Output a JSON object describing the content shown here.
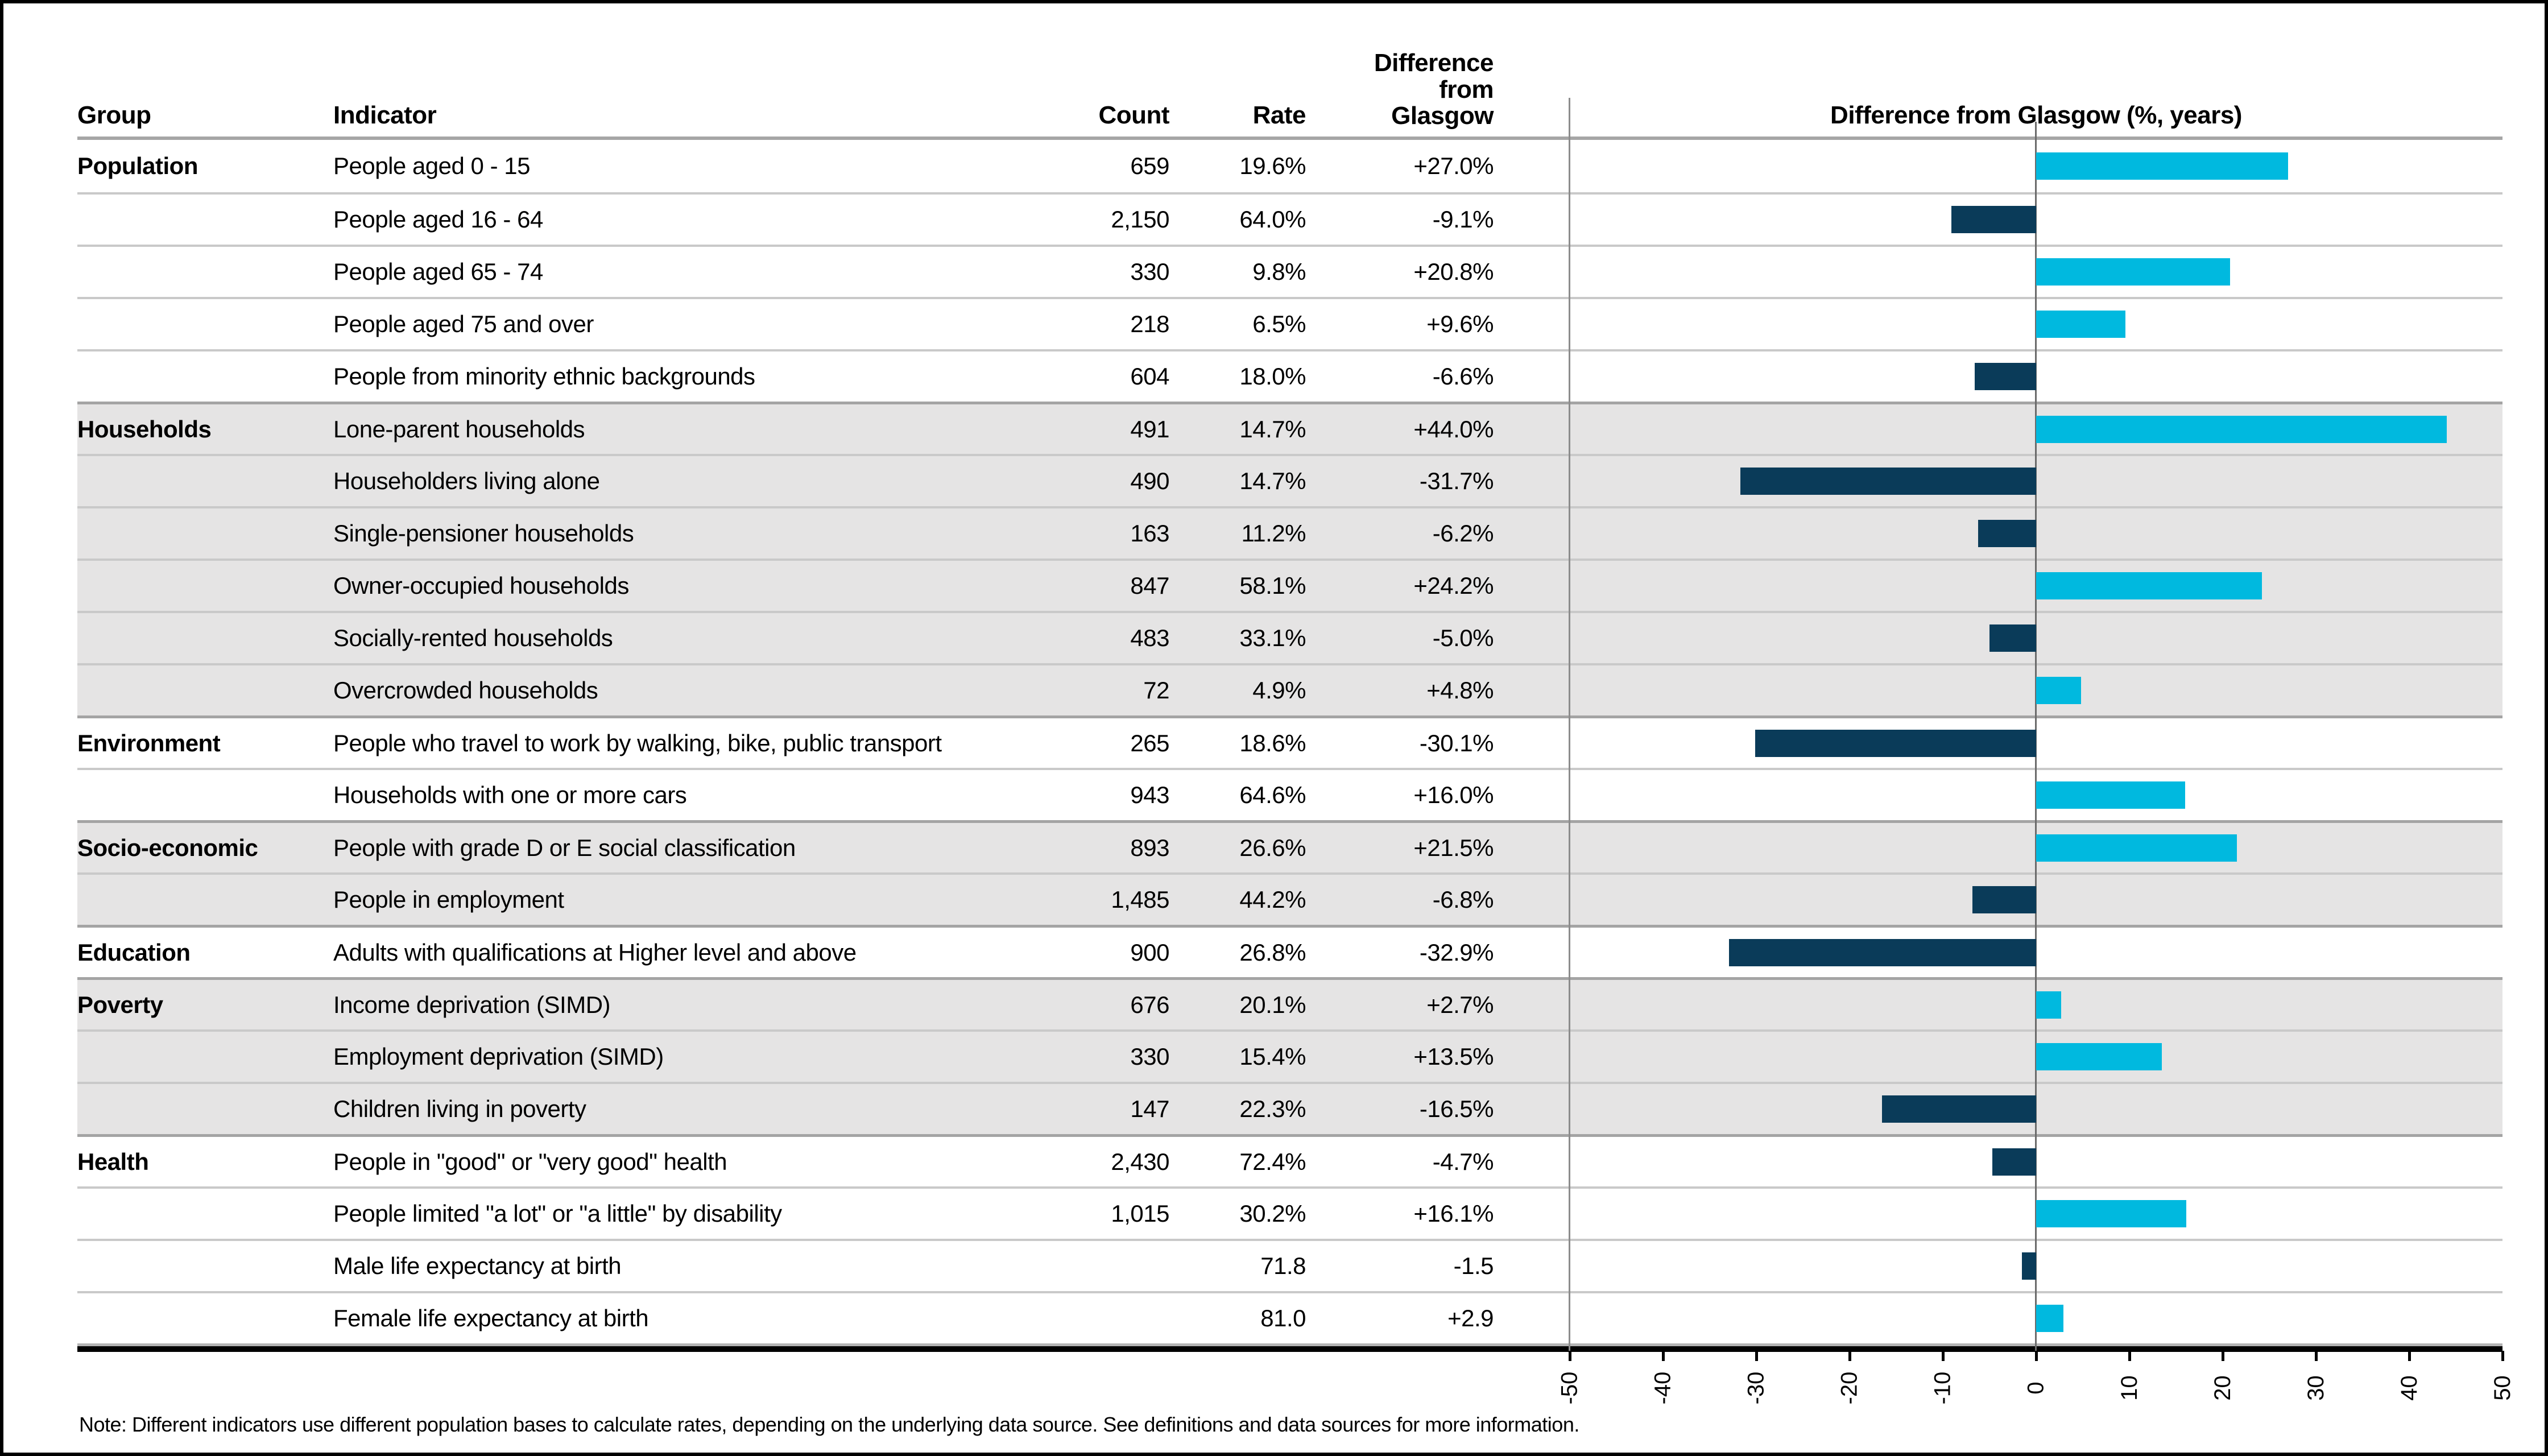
{
  "header": {
    "group": "Group",
    "indicator": "Indicator",
    "count": "Count",
    "rate": "Rate",
    "difference": "Difference\nfrom\nGlasgow"
  },
  "chart": {
    "title": "Difference from Glasgow (%, years)",
    "ticks": [
      -50,
      -40,
      -30,
      -20,
      -10,
      0,
      10,
      20,
      30,
      40,
      50
    ],
    "xlim": [
      -50,
      50
    ],
    "positive_color": "#00b9df",
    "negative_color": "#0a3b59"
  },
  "table": {
    "rows": [
      {
        "group": "Population",
        "indicator": "People aged 0 - 15",
        "count": "659",
        "rate": "19.6%",
        "difference": "+27.0%",
        "value": 27.0,
        "shaded": false,
        "section_start": true
      },
      {
        "group": "",
        "indicator": "People aged 16 - 64",
        "count": "2,150",
        "rate": "64.0%",
        "difference": "-9.1%",
        "value": -9.1,
        "shaded": false,
        "section_start": false
      },
      {
        "group": "",
        "indicator": "People aged 65 - 74",
        "count": "330",
        "rate": "9.8%",
        "difference": "+20.8%",
        "value": 20.8,
        "shaded": false,
        "section_start": false
      },
      {
        "group": "",
        "indicator": "People aged 75 and over",
        "count": "218",
        "rate": "6.5%",
        "difference": "+9.6%",
        "value": 9.6,
        "shaded": false,
        "section_start": false
      },
      {
        "group": "",
        "indicator": "People from minority ethnic backgrounds",
        "count": "604",
        "rate": "18.0%",
        "difference": "-6.6%",
        "value": -6.6,
        "shaded": false,
        "section_start": false
      },
      {
        "group": "Households",
        "indicator": "Lone-parent households",
        "count": "491",
        "rate": "14.7%",
        "difference": "+44.0%",
        "value": 44.0,
        "shaded": true,
        "section_start": true
      },
      {
        "group": "",
        "indicator": "Householders living alone",
        "count": "490",
        "rate": "14.7%",
        "difference": "-31.7%",
        "value": -31.7,
        "shaded": true,
        "section_start": false
      },
      {
        "group": "",
        "indicator": "Single-pensioner households",
        "count": "163",
        "rate": "11.2%",
        "difference": "-6.2%",
        "value": -6.2,
        "shaded": true,
        "section_start": false
      },
      {
        "group": "",
        "indicator": "Owner-occupied households",
        "count": "847",
        "rate": "58.1%",
        "difference": "+24.2%",
        "value": 24.2,
        "shaded": true,
        "section_start": false
      },
      {
        "group": "",
        "indicator": "Socially-rented households",
        "count": "483",
        "rate": "33.1%",
        "difference": "-5.0%",
        "value": -5.0,
        "shaded": true,
        "section_start": false
      },
      {
        "group": "",
        "indicator": "Overcrowded households",
        "count": "72",
        "rate": "4.9%",
        "difference": "+4.8%",
        "value": 4.8,
        "shaded": true,
        "section_start": false
      },
      {
        "group": "Environment",
        "indicator": "People who travel to work by walking, bike, public transport",
        "count": "265",
        "rate": "18.6%",
        "difference": "-30.1%",
        "value": -30.1,
        "shaded": false,
        "section_start": true
      },
      {
        "group": "",
        "indicator": "Households with one or more cars",
        "count": "943",
        "rate": "64.6%",
        "difference": "+16.0%",
        "value": 16.0,
        "shaded": false,
        "section_start": false
      },
      {
        "group": "Socio-economic",
        "indicator": "People with grade D or E social classification",
        "count": "893",
        "rate": "26.6%",
        "difference": "+21.5%",
        "value": 21.5,
        "shaded": true,
        "section_start": true
      },
      {
        "group": "",
        "indicator": "People in employment",
        "count": "1,485",
        "rate": "44.2%",
        "difference": "-6.8%",
        "value": -6.8,
        "shaded": true,
        "section_start": false
      },
      {
        "group": "Education",
        "indicator": "Adults with qualifications at Higher level and above",
        "count": "900",
        "rate": "26.8%",
        "difference": "-32.9%",
        "value": -32.9,
        "shaded": false,
        "section_start": true
      },
      {
        "group": "Poverty",
        "indicator": "Income deprivation (SIMD)",
        "count": "676",
        "rate": "20.1%",
        "difference": "+2.7%",
        "value": 2.7,
        "shaded": true,
        "section_start": true
      },
      {
        "group": "",
        "indicator": "Employment deprivation (SIMD)",
        "count": "330",
        "rate": "15.4%",
        "difference": "+13.5%",
        "value": 13.5,
        "shaded": true,
        "section_start": false
      },
      {
        "group": "",
        "indicator": "Children living in poverty",
        "count": "147",
        "rate": "22.3%",
        "difference": "-16.5%",
        "value": -16.5,
        "shaded": true,
        "section_start": false
      },
      {
        "group": "Health",
        "indicator": "People in \"good\" or \"very good\" health",
        "count": "2,430",
        "rate": "72.4%",
        "difference": "-4.7%",
        "value": -4.7,
        "shaded": false,
        "section_start": true
      },
      {
        "group": "",
        "indicator": "People limited \"a lot\" or \"a little\" by disability",
        "count": "1,015",
        "rate": "30.2%",
        "difference": "+16.1%",
        "value": 16.1,
        "shaded": false,
        "section_start": false
      },
      {
        "group": "",
        "indicator": "Male life expectancy at birth",
        "count": "",
        "rate": "71.8",
        "difference": "-1.5",
        "value": -1.5,
        "shaded": false,
        "section_start": false
      },
      {
        "group": "",
        "indicator": "Female life expectancy at birth",
        "count": "",
        "rate": "81.0",
        "difference": "+2.9",
        "value": 2.9,
        "shaded": false,
        "section_start": false
      }
    ]
  },
  "note": "Note: Different indicators use different population bases to calculate rates, depending on the underlying data source. See definitions and data sources for more information.",
  "chart_data": {
    "type": "bar",
    "orientation": "horizontal",
    "title": "Difference from Glasgow (%, years)",
    "xlabel": "",
    "ylabel": "",
    "xlim": [
      -50,
      50
    ],
    "x_ticks": [
      -50,
      -40,
      -30,
      -20,
      -10,
      0,
      10,
      20,
      30,
      40,
      50
    ],
    "grid": "zero-line and -50 line only",
    "legend": "none",
    "groups": [
      "Population",
      "Population",
      "Population",
      "Population",
      "Population",
      "Households",
      "Households",
      "Households",
      "Households",
      "Households",
      "Households",
      "Environment",
      "Environment",
      "Socio-economic",
      "Socio-economic",
      "Education",
      "Poverty",
      "Poverty",
      "Poverty",
      "Health",
      "Health",
      "Health",
      "Health"
    ],
    "categories": [
      "People aged 0 - 15",
      "People aged 16 - 64",
      "People aged 65 - 74",
      "People aged 75 and over",
      "People from minority ethnic backgrounds",
      "Lone-parent households",
      "Householders living alone",
      "Single-pensioner households",
      "Owner-occupied households",
      "Socially-rented households",
      "Overcrowded households",
      "People who travel to work by walking, bike, public transport",
      "Households with one or more cars",
      "People with grade D or E social classification",
      "People in employment",
      "Adults with qualifications at Higher level and above",
      "Income deprivation (SIMD)",
      "Employment deprivation (SIMD)",
      "Children living in poverty",
      "People in \"good\" or \"very good\" health",
      "People limited \"a lot\" or \"a little\" by disability",
      "Male life expectancy at birth",
      "Female life expectancy at birth"
    ],
    "values": [
      27.0,
      -9.1,
      20.8,
      9.6,
      -6.6,
      44.0,
      -31.7,
      -6.2,
      24.2,
      -5.0,
      4.8,
      -30.1,
      16.0,
      21.5,
      -6.8,
      -32.9,
      2.7,
      13.5,
      -16.5,
      -4.7,
      16.1,
      -1.5,
      2.9
    ],
    "positive_color": "#00b9df",
    "negative_color": "#0a3b59"
  }
}
